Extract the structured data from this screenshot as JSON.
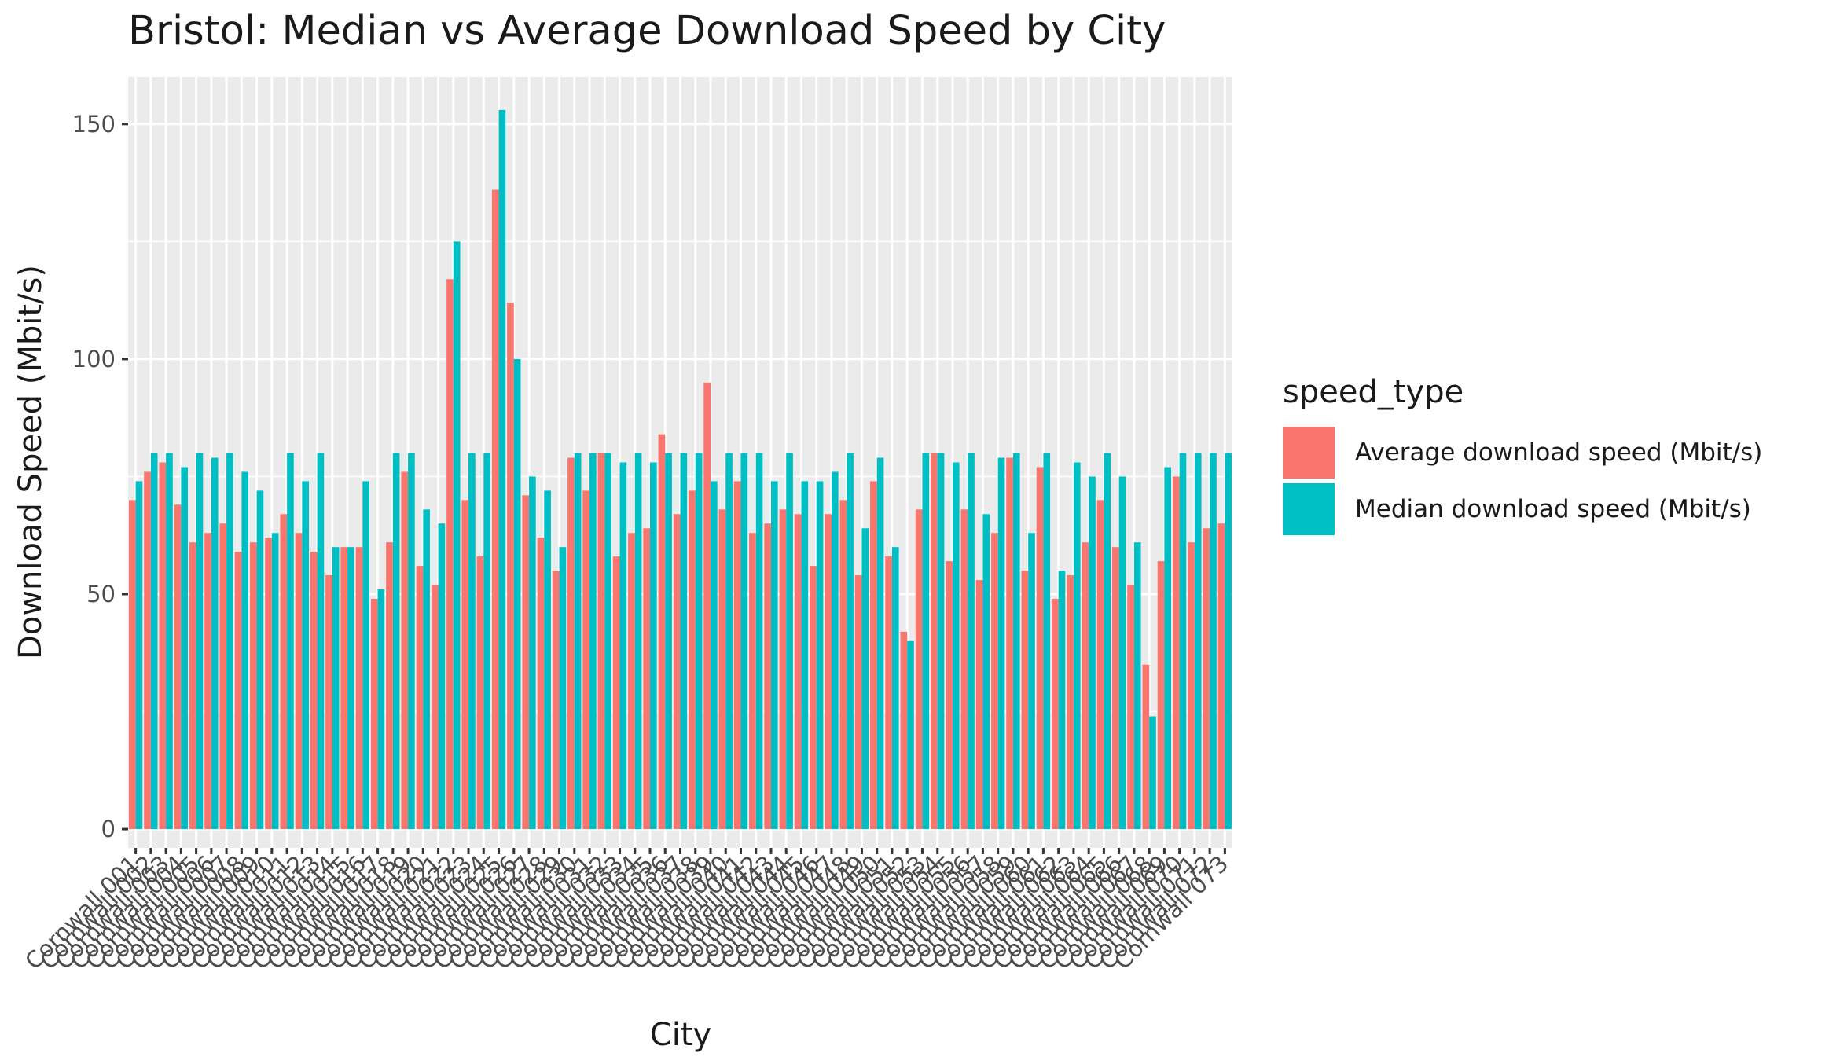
{
  "chart_data": {
    "type": "bar",
    "title": "Bristol: Median vs Average Download Speed by City",
    "xlabel": "City",
    "ylabel": "Download Speed (Mbit/s)",
    "ylim": [
      -4,
      160
    ],
    "yticks": [
      0,
      50,
      100,
      150
    ],
    "grid": true,
    "legend": {
      "title": "speed_type",
      "placement": "right"
    },
    "categories": [
      "Cornwall 001",
      "Cornwall 002",
      "Cornwall 003",
      "Cornwall 004",
      "Cornwall 005",
      "Cornwall 006",
      "Cornwall 007",
      "Cornwall 008",
      "Cornwall 009",
      "Cornwall 010",
      "Cornwall 011",
      "Cornwall 012",
      "Cornwall 013",
      "Cornwall 014",
      "Cornwall 015",
      "Cornwall 016",
      "Cornwall 017",
      "Cornwall 018",
      "Cornwall 019",
      "Cornwall 020",
      "Cornwall 021",
      "Cornwall 022",
      "Cornwall 023",
      "Cornwall 024",
      "Cornwall 025",
      "Cornwall 026",
      "Cornwall 027",
      "Cornwall 028",
      "Cornwall 029",
      "Cornwall 030",
      "Cornwall 031",
      "Cornwall 032",
      "Cornwall 033",
      "Cornwall 034",
      "Cornwall 035",
      "Cornwall 036",
      "Cornwall 037",
      "Cornwall 038",
      "Cornwall 039",
      "Cornwall 040",
      "Cornwall 041",
      "Cornwall 042",
      "Cornwall 043",
      "Cornwall 044",
      "Cornwall 045",
      "Cornwall 046",
      "Cornwall 047",
      "Cornwall 048",
      "Cornwall 049",
      "Cornwall 050",
      "Cornwall 051",
      "Cornwall 052",
      "Cornwall 053",
      "Cornwall 054",
      "Cornwall 055",
      "Cornwall 056",
      "Cornwall 057",
      "Cornwall 058",
      "Cornwall 059",
      "Cornwall 060",
      "Cornwall 061",
      "Cornwall 062",
      "Cornwall 063",
      "Cornwall 064",
      "Cornwall 065",
      "Cornwall 066",
      "Cornwall 067",
      "Cornwall 068",
      "Cornwall 069",
      "Cornwall 070",
      "Cornwall 071",
      "Cornwall 072",
      "Cornwall 073"
    ],
    "series": [
      {
        "name": "Average download speed (Mbit/s)",
        "color": "#F8766D",
        "values": [
          70,
          76,
          78,
          69,
          61,
          63,
          65,
          59,
          61,
          62,
          67,
          63,
          59,
          54,
          60,
          60,
          49,
          61,
          76,
          56,
          52,
          117,
          70,
          58,
          136,
          112,
          71,
          62,
          55,
          79,
          72,
          80,
          58,
          63,
          64,
          84,
          67,
          72,
          95,
          68,
          74,
          63,
          65,
          68,
          67,
          56,
          67,
          70,
          54,
          74,
          58,
          42,
          68,
          80,
          57,
          68,
          53,
          63,
          79,
          55,
          77,
          49,
          54,
          61,
          70,
          60,
          52,
          35,
          57,
          75,
          61,
          64,
          65
        ]
      },
      {
        "name": "Median download speed (Mbit/s)",
        "color": "#00BFC4",
        "values": [
          74,
          80,
          80,
          77,
          80,
          79,
          80,
          76,
          72,
          63,
          80,
          74,
          80,
          60,
          60,
          74,
          51,
          80,
          80,
          68,
          65,
          125,
          80,
          80,
          153,
          100,
          75,
          72,
          60,
          80,
          80,
          80,
          78,
          80,
          78,
          80,
          80,
          80,
          74,
          80,
          80,
          80,
          74,
          80,
          74,
          74,
          76,
          80,
          64,
          79,
          60,
          40,
          80,
          80,
          78,
          80,
          67,
          79,
          80,
          63,
          80,
          55,
          78,
          75,
          80,
          75,
          61,
          24,
          77,
          80,
          80,
          80,
          80
        ]
      }
    ]
  }
}
